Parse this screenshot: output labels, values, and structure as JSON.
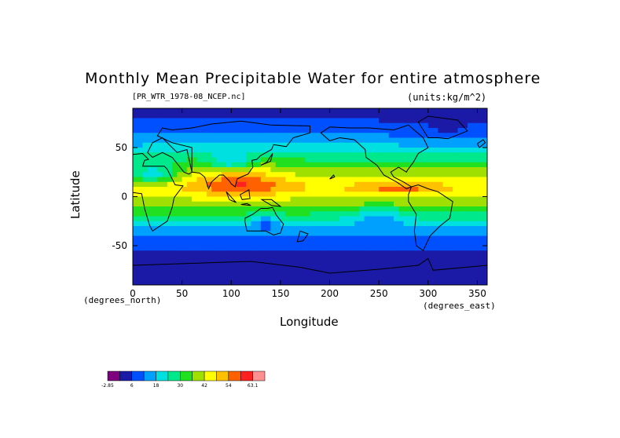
{
  "chart_data": {
    "type": "heatmap",
    "title": "Monthly Mean Precipitable Water for entire atmosphere",
    "subtitle_left": "[PR_WTR_1978-08_NCEP.nc]",
    "subtitle_right": "(units:kg/m^2)",
    "xlabel": "Longitude",
    "ylabel": "Latitude",
    "x_units": "(degrees_east)",
    "y_units": "(degrees_north)",
    "xlim": [
      0,
      360
    ],
    "ylim": [
      -90,
      90
    ],
    "x_ticks": [
      "0",
      "50",
      "100",
      "150",
      "200",
      "250",
      "300",
      "350"
    ],
    "x_tick_values": [
      0,
      50,
      100,
      150,
      200,
      250,
      300,
      350
    ],
    "y_ticks": [
      "-50",
      "0",
      "50"
    ],
    "y_tick_values": [
      -50,
      0,
      50
    ],
    "colorbar": {
      "levels": [
        -2.85,
        0,
        6,
        12,
        18,
        24,
        30,
        36,
        42,
        48,
        54,
        60,
        63.1
      ],
      "labels": [
        "-2.85",
        "6",
        "18",
        "30",
        "42",
        "54",
        "63.1"
      ],
      "colors": [
        "#7f007f",
        "#1a1aa6",
        "#0050ff",
        "#00a0ff",
        "#00e0e0",
        "#00e88c",
        "#20e020",
        "#a0e000",
        "#ffff00",
        "#ffc000",
        "#ff6000",
        "#ff2020",
        "#ff9090"
      ]
    },
    "field_description_points": {
      "latitude_band_values": [
        {
          "lat": 85,
          "value": 4
        },
        {
          "lat": 70,
          "value": 8
        },
        {
          "lat": 55,
          "value": 16
        },
        {
          "lat": 40,
          "value": 28
        },
        {
          "lat": 25,
          "value": 38
        },
        {
          "lat": 10,
          "value": 48
        },
        {
          "lat": 0,
          "value": 42
        },
        {
          "lat": -10,
          "value": 36
        },
        {
          "lat": -20,
          "value": 28
        },
        {
          "lat": -30,
          "value": 18
        },
        {
          "lat": -40,
          "value": 12
        },
        {
          "lat": -50,
          "value": 8
        },
        {
          "lat": -60,
          "value": 5
        },
        {
          "lat": -75,
          "value": 1
        }
      ],
      "maxima_region": {
        "lon_range": [
          70,
          150
        ],
        "lat_range": [
          0,
          30
        ],
        "value": 56
      }
    }
  }
}
